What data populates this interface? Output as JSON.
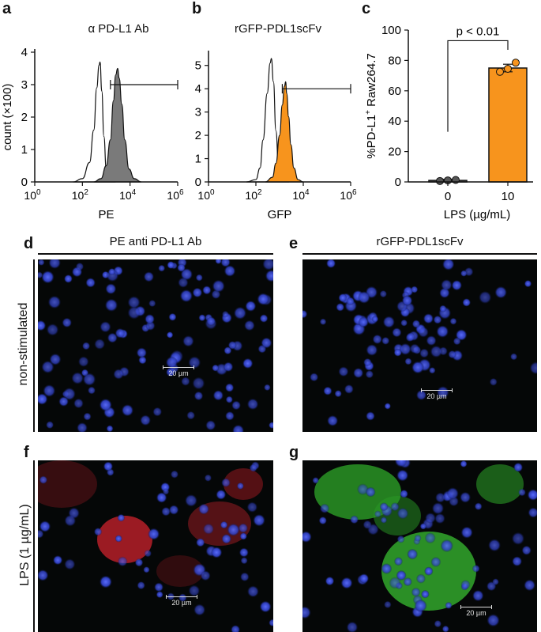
{
  "panels": {
    "a": {
      "letter": "a",
      "title": "α PD-L1 Ab",
      "xlabel": "PE",
      "ylabel": "count (×100)",
      "fill_color": "#7a7a7a",
      "y_ticks": [
        "0",
        "1",
        "2",
        "3",
        "4"
      ],
      "x_ticks": [
        {
          "base": "10",
          "exp": "0"
        },
        {
          "base": "10",
          "exp": "2"
        },
        {
          "base": "10",
          "exp": "4"
        },
        {
          "base": "10",
          "exp": "6"
        }
      ]
    },
    "b": {
      "letter": "b",
      "title": "rGFP-PDL1scFv",
      "xlabel": "GFP",
      "fill_color": "#f7941d",
      "y_ticks": [
        "0",
        "1",
        "2",
        "3",
        "4",
        "5"
      ],
      "x_ticks": [
        {
          "base": "10",
          "exp": "0"
        },
        {
          "base": "10",
          "exp": "2"
        },
        {
          "base": "10",
          "exp": "4"
        },
        {
          "base": "10",
          "exp": "6"
        }
      ]
    },
    "c": {
      "letter": "c",
      "pvalue": "p < 0.01",
      "xlabel": "LPS (µg/mL)",
      "ylabel_main": "%PD-L1",
      "ylabel_sup": "+",
      "ylabel_rest": " Raw264.7",
      "y_ticks": [
        "0",
        "20",
        "40",
        "60",
        "80",
        "100"
      ],
      "x_ticks": [
        "0",
        "10"
      ],
      "bar_color": "#f7941d"
    },
    "d": {
      "letter": "d",
      "column_title": "PE anti PD-L1 Ab",
      "scale": "20 µm"
    },
    "e": {
      "letter": "e",
      "column_title": "rGFP-PDL1scFv",
      "scale": "20 µm"
    },
    "f": {
      "letter": "f",
      "scale": "20 µm"
    },
    "g": {
      "letter": "g",
      "scale": "20 µm"
    }
  },
  "row_labels": {
    "top": "non-stimulated",
    "bottom": "LPS (1 µg/mL)"
  },
  "chart_data": [
    {
      "type": "area",
      "title": "α PD-L1 Ab",
      "xlabel": "PE",
      "ylabel": "count (×100)",
      "x_scale": "log10",
      "xlim": [
        1,
        1000000
      ],
      "ylim": [
        0,
        4
      ],
      "series": [
        {
          "x": [
            40,
            100,
            200,
            300,
            400,
            500,
            550,
            650,
            800,
            1000,
            1500,
            2500
          ],
          "y": [
            0,
            0.1,
            0.6,
            1.6,
            2.9,
            3.6,
            3.7,
            2.8,
            1.4,
            0.4,
            0.1,
            0
          ]
        },
        {
          "x": [
            300,
            600,
            1000,
            1500,
            2000,
            2500,
            3000,
            3500,
            4500,
            6000,
            9000,
            15000,
            30000
          ],
          "y": [
            0,
            0.1,
            0.5,
            1.3,
            2.5,
            3.3,
            3.5,
            3.2,
            2.4,
            1.3,
            0.4,
            0.1,
            0
          ]
        }
      ],
      "gate": {
        "x": [
          1500,
          1000000
        ],
        "y": 3.0
      }
    },
    {
      "type": "area",
      "title": "rGFP-PDL1scFv",
      "xlabel": "GFP",
      "x_scale": "log10",
      "xlim": [
        1,
        1000000
      ],
      "ylim": [
        0,
        5.5
      ],
      "series": [
        {
          "x": [
            40,
            100,
            150,
            200,
            300,
            400,
            450,
            550,
            700,
            900,
            1500,
            2500
          ],
          "y": [
            0,
            0.1,
            0.6,
            1.8,
            3.8,
            5.1,
            5.3,
            4.3,
            2.2,
            0.7,
            0.1,
            0
          ]
        },
        {
          "x": [
            250,
            500,
            700,
            1000,
            1300,
            1600,
            1800,
            2000,
            2400,
            3000,
            4000,
            6000,
            10000
          ],
          "y": [
            0,
            0.2,
            0.8,
            2.0,
            3.3,
            4.1,
            4.3,
            3.8,
            2.8,
            1.6,
            0.6,
            0.1,
            0
          ]
        }
      ],
      "gate": {
        "x": [
          1300,
          1000000
        ],
        "y": 4.0
      }
    },
    {
      "type": "bar",
      "categories": [
        "0",
        "10"
      ],
      "values": [
        1,
        75
      ],
      "error": [
        0.8,
        2.5
      ],
      "points": [
        [
          0.6,
          1.0,
          1.3
        ],
        [
          72.5,
          74.5,
          78.5
        ]
      ],
      "xlabel": "LPS (µg/mL)",
      "ylabel": "%PD-L1+ Raw264.7",
      "ylim": [
        0,
        100
      ],
      "annotation": "p < 0.01"
    }
  ]
}
